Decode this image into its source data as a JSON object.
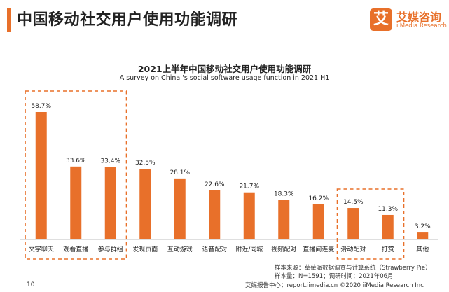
{
  "header": {
    "title": "中国移动社交用户使用功能调研"
  },
  "logo": {
    "icon_char": "艾",
    "cn": "艾媒咨询",
    "en": "iiMedia Research",
    "color": "#e8702a"
  },
  "chart_data": {
    "type": "bar",
    "title": "2021上半年中国移动社交用户使用功能调研",
    "subtitle": "A survey on China 's social software usage function in 2021 H1",
    "categories": [
      "文字聊天",
      "观看直播",
      "参与群组",
      "发现页面",
      "互动游戏",
      "语音配对",
      "附近/同城",
      "视频配对",
      "直播间连麦",
      "滑动配对",
      "打赏",
      "其他"
    ],
    "values": [
      58.7,
      33.6,
      33.4,
      32.5,
      28.1,
      22.6,
      21.7,
      18.3,
      16.2,
      14.5,
      11.3,
      3.2
    ],
    "value_labels": [
      "58.7%",
      "33.6%",
      "33.4%",
      "32.5%",
      "28.1%",
      "22.6%",
      "21.7%",
      "18.3%",
      "16.2%",
      "14.5%",
      "11.3%",
      "3.2%"
    ],
    "highlight_groups": [
      [
        0,
        2
      ],
      [
        9,
        10
      ]
    ],
    "bar_color": "#e8702a",
    "ylim": [
      0,
      65
    ],
    "grid": false,
    "legend": false
  },
  "source": {
    "line1": "样本来源：草莓派数据调查与计算系统（Strawberry Pie）",
    "line2": "样本量：N=1591；调研时间：2021年06月"
  },
  "footer": {
    "page_number": "10",
    "text": "艾媒报告中心：report.iimedia.cn  ©2020  iiMedia Research  Inc"
  }
}
